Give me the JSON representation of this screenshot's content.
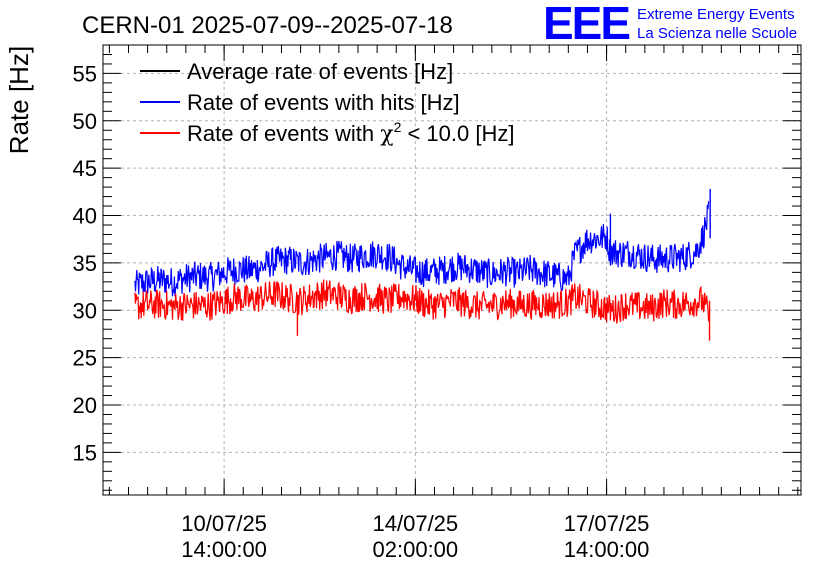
{
  "header": {
    "title": "CERN-01 2025-07-09--2025-07-18",
    "logo_text": "EEE",
    "logo_line1": "Extreme Energy Events",
    "logo_line2": "La Scienza nelle Scuole"
  },
  "colors": {
    "average": "#000000",
    "hits": "#0000ff",
    "chi2": "#ff0000",
    "logo": "#0000ff",
    "grid": "#b4b4b4"
  },
  "chart_data": {
    "type": "line",
    "title": "CERN-01 2025-07-09--2025-07-18",
    "xlabel": "",
    "ylabel": "Rate [Hz]",
    "ylim": [
      10.5,
      58
    ],
    "xlim_hours": [
      0,
      219
    ],
    "yticks": [
      15,
      20,
      25,
      30,
      35,
      40,
      45,
      50,
      55
    ],
    "xticks": [
      {
        "hour": 38,
        "line1": "10/07/25",
        "line2": "14:00:00"
      },
      {
        "hour": 98,
        "line1": "14/07/25",
        "line2": "02:00:00"
      },
      {
        "hour": 158,
        "line1": "17/07/25",
        "line2": "14:00:00"
      }
    ],
    "grid": true,
    "legend_position": "top-left",
    "legend": [
      {
        "key": "average",
        "label": "Average rate of events [Hz]"
      },
      {
        "key": "hits",
        "label": "Rate of events with hits [Hz]"
      },
      {
        "key": "chi2",
        "label_prefix": "Rate of events with ",
        "label_symbol": "χ",
        "label_sup": "2",
        "label_suffix": " < 10.0 [Hz]"
      }
    ],
    "series": [
      {
        "name": "Rate of events with hits [Hz]",
        "key": "hits",
        "noise": 1.0,
        "hours": [
          10,
          14,
          18,
          22,
          26,
          30,
          34,
          38,
          42,
          46,
          50,
          54,
          58,
          62,
          66,
          70,
          74,
          78,
          82,
          86,
          90,
          94,
          98,
          102,
          106,
          110,
          114,
          118,
          122,
          126,
          130,
          134,
          138,
          142,
          146,
          148,
          152,
          156,
          158,
          159,
          162,
          166,
          170,
          174,
          178,
          182,
          186,
          188,
          190
        ],
        "values": [
          32.6,
          33.0,
          33.2,
          33.0,
          33.4,
          33.6,
          33.5,
          34.0,
          34.3,
          34.2,
          34.6,
          35.2,
          35.3,
          35.0,
          35.3,
          35.6,
          35.8,
          35.4,
          35.8,
          36.0,
          35.6,
          34.6,
          34.1,
          34.0,
          34.2,
          34.6,
          34.5,
          34.1,
          33.8,
          34.1,
          33.9,
          34.3,
          33.9,
          33.6,
          33.3,
          35.8,
          37.5,
          37.6,
          37.8,
          36.3,
          36.0,
          36.1,
          35.6,
          35.4,
          35.5,
          35.6,
          36.2,
          37.6,
          40.0
        ]
      },
      {
        "name": "Rate of events with χ2 < 10.0 [Hz]",
        "key": "chi2",
        "noise": 1.0,
        "hours": [
          10,
          14,
          18,
          22,
          26,
          30,
          34,
          38,
          42,
          46,
          50,
          54,
          58,
          62,
          66,
          70,
          74,
          78,
          82,
          86,
          90,
          94,
          98,
          102,
          106,
          110,
          114,
          118,
          122,
          126,
          130,
          134,
          138,
          142,
          146,
          148,
          152,
          156,
          160,
          164,
          168,
          172,
          176,
          180,
          184,
          188,
          190
        ],
        "values": [
          30.4,
          30.6,
          30.6,
          30.4,
          30.5,
          30.5,
          30.5,
          31.0,
          31.4,
          31.0,
          31.4,
          31.7,
          31.3,
          31.0,
          31.5,
          31.8,
          31.5,
          31.2,
          31.5,
          31.3,
          31.0,
          31.5,
          31.1,
          30.6,
          30.6,
          31.0,
          30.7,
          30.4,
          30.5,
          30.8,
          30.6,
          30.6,
          30.6,
          30.6,
          30.8,
          31.4,
          30.9,
          30.4,
          30.0,
          30.6,
          30.4,
          30.2,
          30.8,
          30.6,
          30.8,
          31.0,
          29.6
        ]
      }
    ],
    "spikes": [
      {
        "key": "chi2",
        "hour": 61,
        "value": 27.3
      },
      {
        "key": "chi2",
        "hour": 190.3,
        "value": 26.8
      },
      {
        "key": "hits",
        "hour": 159.2,
        "value": 40.2
      },
      {
        "key": "hits",
        "hour": 190.5,
        "value": 42.8
      }
    ]
  }
}
